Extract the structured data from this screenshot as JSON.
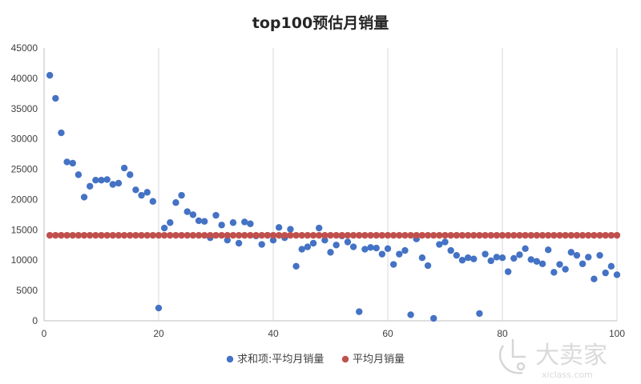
{
  "chart_data": {
    "type": "scatter",
    "title": "top100预估月销量",
    "xlabel": "",
    "ylabel": "",
    "xlim": [
      0,
      100
    ],
    "ylim": [
      0,
      45000
    ],
    "x_ticks": [
      0,
      20,
      40,
      60,
      80,
      100
    ],
    "y_ticks": [
      0,
      5000,
      10000,
      15000,
      20000,
      25000,
      30000,
      35000,
      40000,
      45000
    ],
    "grid": "vertical",
    "legend_position": "bottom",
    "series": [
      {
        "name": "求和项:平均月销量",
        "color": "#4472c4",
        "x": [
          1,
          2,
          3,
          4,
          5,
          6,
          7,
          8,
          9,
          10,
          11,
          12,
          13,
          14,
          15,
          16,
          17,
          18,
          19,
          20,
          21,
          22,
          23,
          24,
          25,
          26,
          27,
          28,
          29,
          30,
          31,
          32,
          33,
          34,
          35,
          36,
          37,
          38,
          39,
          40,
          41,
          42,
          43,
          44,
          45,
          46,
          47,
          48,
          49,
          50,
          51,
          52,
          53,
          54,
          55,
          56,
          57,
          58,
          59,
          60,
          61,
          62,
          63,
          64,
          65,
          66,
          67,
          68,
          69,
          70,
          71,
          72,
          73,
          74,
          75,
          76,
          77,
          78,
          79,
          80,
          81,
          82,
          83,
          84,
          85,
          86,
          87,
          88,
          89,
          90,
          91,
          92,
          93,
          94,
          95,
          96,
          97,
          98,
          99,
          100
        ],
        "y": [
          40500,
          36700,
          31000,
          26200,
          26000,
          24100,
          20400,
          22200,
          23200,
          23200,
          23300,
          22500,
          22700,
          25200,
          24100,
          21600,
          20700,
          21200,
          19700,
          2100,
          15300,
          16200,
          19500,
          20700,
          18000,
          17500,
          16500,
          16400,
          13700,
          17400,
          15800,
          13300,
          16200,
          12800,
          16300,
          16000,
          14000,
          12600,
          14100,
          13300,
          15400,
          13700,
          15100,
          9000,
          11800,
          12200,
          12800,
          15300,
          13300,
          11300,
          12500,
          14000,
          13000,
          12200,
          1500,
          11800,
          12100,
          12000,
          11000,
          11900,
          9300,
          11000,
          11600,
          1000,
          13500,
          10400,
          9100,
          400,
          12600,
          13000,
          11600,
          10800,
          10000,
          10400,
          10200,
          1200,
          11000,
          9900,
          10500,
          10400,
          8100,
          10300,
          10900,
          11900,
          10100,
          9800,
          9400,
          11700,
          8000,
          9300,
          8500,
          11300,
          10800,
          9400,
          10500,
          6900,
          10800,
          7900,
          9000,
          7600
        ]
      },
      {
        "name": "平均月销量",
        "color": "#c0504d",
        "x": [
          1,
          2,
          3,
          4,
          5,
          6,
          7,
          8,
          9,
          10,
          11,
          12,
          13,
          14,
          15,
          16,
          17,
          18,
          19,
          20,
          21,
          22,
          23,
          24,
          25,
          26,
          27,
          28,
          29,
          30,
          31,
          32,
          33,
          34,
          35,
          36,
          37,
          38,
          39,
          40,
          41,
          42,
          43,
          44,
          45,
          46,
          47,
          48,
          49,
          50,
          51,
          52,
          53,
          54,
          55,
          56,
          57,
          58,
          59,
          60,
          61,
          62,
          63,
          64,
          65,
          66,
          67,
          68,
          69,
          70,
          71,
          72,
          73,
          74,
          75,
          76,
          77,
          78,
          79,
          80,
          81,
          82,
          83,
          84,
          85,
          86,
          87,
          88,
          89,
          90,
          91,
          92,
          93,
          94,
          95,
          96,
          97,
          98,
          99,
          100
        ],
        "y": [
          14100,
          14100,
          14100,
          14100,
          14100,
          14100,
          14100,
          14100,
          14100,
          14100,
          14100,
          14100,
          14100,
          14100,
          14100,
          14100,
          14100,
          14100,
          14100,
          14100,
          14100,
          14100,
          14100,
          14100,
          14100,
          14100,
          14100,
          14100,
          14100,
          14100,
          14100,
          14100,
          14100,
          14100,
          14100,
          14100,
          14100,
          14100,
          14100,
          14100,
          14100,
          14100,
          14100,
          14100,
          14100,
          14100,
          14100,
          14100,
          14100,
          14100,
          14100,
          14100,
          14100,
          14100,
          14100,
          14100,
          14100,
          14100,
          14100,
          14100,
          14100,
          14100,
          14100,
          14100,
          14100,
          14100,
          14100,
          14100,
          14100,
          14100,
          14100,
          14100,
          14100,
          14100,
          14100,
          14100,
          14100,
          14100,
          14100,
          14100,
          14100,
          14100,
          14100,
          14100,
          14100,
          14100,
          14100,
          14100,
          14100,
          14100,
          14100,
          14100,
          14100,
          14100,
          14100,
          14100,
          14100,
          14100,
          14100,
          14100
        ]
      }
    ]
  },
  "watermark": {
    "text": "大卖家",
    "subtext": "xiclass.com"
  }
}
